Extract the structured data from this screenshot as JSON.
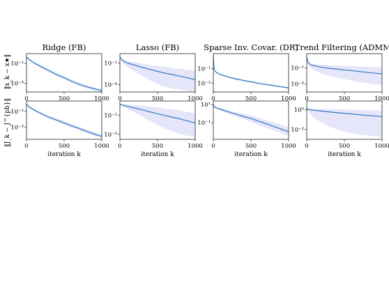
{
  "figure": {
    "row_labels": [
      "‖x_k − x★‖",
      "‖J_k − J^{pb}‖"
    ],
    "xlabel": "iteration k"
  },
  "chart_data": [
    {
      "type": "line",
      "panel": "ridge-iterate",
      "title": "Ridge (FB)",
      "xlabel": "",
      "ylabel": "‖x_k − x★‖",
      "yscale": "log",
      "xlim": [
        0,
        1000
      ],
      "ylim": [
        5e-06,
        3.0
      ],
      "xticks": [
        0,
        500,
        1000
      ],
      "yticks": [
        {
          "v": 0.1,
          "label": "10⁻¹"
        },
        {
          "v": 0.0001,
          "label": "10⁻⁴"
        }
      ],
      "x": [
        0,
        25,
        50,
        100,
        200,
        300,
        400,
        500,
        600,
        700,
        800,
        900,
        1000
      ],
      "median": [
        1.0,
        0.5,
        0.3,
        0.12,
        0.03,
        0.008,
        0.002,
        0.0007,
        0.0002,
        7e-05,
        3e-05,
        1.5e-05,
        8e-06
      ],
      "lower": [
        0.8,
        0.35,
        0.22,
        0.08,
        0.018,
        0.0045,
        0.0012,
        0.0004,
        0.00012,
        4e-05,
        1.6e-05,
        8e-06,
        5e-06
      ],
      "upper": [
        1.2,
        0.7,
        0.45,
        0.18,
        0.05,
        0.014,
        0.004,
        0.0012,
        0.0004,
        0.00013,
        5e-05,
        2.5e-05,
        1.4e-05
      ]
    },
    {
      "type": "line",
      "panel": "lasso-iterate",
      "title": "Lasso (FB)",
      "xlabel": "",
      "yscale": "log",
      "xlim": [
        0,
        1000
      ],
      "ylim": [
        1e-05,
        2.0
      ],
      "xticks": [
        0,
        500,
        1000
      ],
      "yticks": [
        {
          "v": 0.1,
          "label": "10⁻¹"
        },
        {
          "v": 0.0001,
          "label": "10⁻⁴"
        }
      ],
      "x": [
        0,
        25,
        50,
        100,
        200,
        300,
        400,
        500,
        600,
        700,
        800,
        900,
        1000
      ],
      "median": [
        0.7,
        0.3,
        0.18,
        0.1,
        0.05,
        0.025,
        0.013,
        0.007,
        0.004,
        0.0025,
        0.0015,
        0.0009,
        0.0005
      ],
      "lower": [
        0.5,
        0.18,
        0.08,
        0.03,
        0.006,
        0.0015,
        0.0004,
        0.00012,
        5e-05,
        3e-05,
        2e-05,
        1.5e-05,
        1e-05
      ],
      "upper": [
        0.9,
        0.45,
        0.3,
        0.2,
        0.12,
        0.08,
        0.055,
        0.04,
        0.03,
        0.022,
        0.016,
        0.012,
        0.009
      ]
    },
    {
      "type": "line",
      "panel": "covar-iterate",
      "title": "Sparse Inv. Covar. (DR)",
      "xlabel": "",
      "yscale": "log",
      "xlim": [
        0,
        1000
      ],
      "ylim": [
        7e-05,
        10.0
      ],
      "xticks": [
        0,
        500,
        1000
      ],
      "yticks": [
        {
          "v": 0.1,
          "label": "10⁻¹"
        },
        {
          "v": 0.001,
          "label": "10⁻³"
        }
      ],
      "x": [
        0,
        5,
        10,
        20,
        40,
        70,
        100,
        200,
        300,
        400,
        500,
        600,
        700,
        800,
        900,
        1000
      ],
      "median": [
        5.0,
        0.5,
        0.1,
        0.05,
        0.03,
        0.02,
        0.015,
        0.007,
        0.004,
        0.0025,
        0.0016,
        0.001,
        0.0007,
        0.0005,
        0.00035,
        0.00025
      ],
      "lower": [
        4.0,
        0.4,
        0.08,
        0.04,
        0.024,
        0.016,
        0.012,
        0.0055,
        0.003,
        0.0019,
        0.0012,
        0.0008,
        0.00055,
        0.00038,
        0.00027,
        0.00019
      ],
      "upper": [
        6.0,
        0.6,
        0.13,
        0.065,
        0.038,
        0.026,
        0.019,
        0.009,
        0.0052,
        0.0033,
        0.0021,
        0.0013,
        0.0009,
        0.00065,
        0.00045,
        0.00033
      ]
    },
    {
      "type": "line",
      "panel": "trend-iterate",
      "title": "Trend Filtering (ADMM)",
      "xlabel": "",
      "yscale": "log",
      "xlim": [
        0,
        1000
      ],
      "ylim": [
        0.0001,
        6.0
      ],
      "xticks": [
        0,
        500,
        1000
      ],
      "yticks": [
        {
          "v": 0.1,
          "label": "10⁻¹"
        },
        {
          "v": 0.001,
          "label": "10⁻³"
        }
      ],
      "x": [
        0,
        10,
        25,
        50,
        100,
        200,
        300,
        400,
        500,
        600,
        700,
        800,
        900,
        1000
      ],
      "median": [
        2.5,
        0.8,
        0.4,
        0.25,
        0.18,
        0.12,
        0.09,
        0.07,
        0.055,
        0.045,
        0.035,
        0.028,
        0.022,
        0.018
      ],
      "lower": [
        2.0,
        0.5,
        0.2,
        0.1,
        0.05,
        0.02,
        0.01,
        0.006,
        0.004,
        0.0025,
        0.0017,
        0.0012,
        0.0009,
        0.0007
      ],
      "upper": [
        3.0,
        1.0,
        0.6,
        0.4,
        0.3,
        0.25,
        0.22,
        0.2,
        0.18,
        0.16,
        0.15,
        0.14,
        0.13,
        0.12
      ]
    },
    {
      "type": "line",
      "panel": "ridge-jacobian",
      "title": "",
      "xlabel": "iteration k",
      "ylabel": "‖J_k − J^{pb}‖",
      "yscale": "log",
      "xlim": [
        0,
        1000
      ],
      "ylim": [
        3e-05,
        2.0
      ],
      "xticks": [
        0,
        500,
        1000
      ],
      "yticks": [
        {
          "v": 0.1,
          "label": "10⁻¹"
        },
        {
          "v": 0.001,
          "label": "10⁻³"
        }
      ],
      "x": [
        0,
        25,
        50,
        100,
        200,
        300,
        400,
        500,
        600,
        700,
        800,
        900,
        1000
      ],
      "median": [
        0.8,
        0.45,
        0.3,
        0.15,
        0.05,
        0.018,
        0.008,
        0.0035,
        0.0015,
        0.0007,
        0.0003,
        0.00014,
        7e-05
      ],
      "lower": [
        0.65,
        0.35,
        0.22,
        0.1,
        0.032,
        0.011,
        0.0048,
        0.0021,
        0.0009,
        0.0004,
        0.00018,
        8e-05,
        4e-05
      ],
      "upper": [
        0.95,
        0.58,
        0.4,
        0.21,
        0.075,
        0.028,
        0.013,
        0.0058,
        0.0026,
        0.0012,
        0.00055,
        0.00025,
        0.00012
      ]
    },
    {
      "type": "line",
      "panel": "lasso-jacobian",
      "title": "",
      "xlabel": "iteration k",
      "yscale": "log",
      "xlim": [
        0,
        1000
      ],
      "ylim": [
        0.0003,
        3.0
      ],
      "xticks": [
        0,
        500,
        1000
      ],
      "yticks": [
        {
          "v": 0.1,
          "label": "10⁻¹"
        },
        {
          "v": 0.001,
          "label": "10⁻³"
        }
      ],
      "x": [
        0,
        25,
        50,
        100,
        200,
        300,
        400,
        500,
        600,
        700,
        800,
        900,
        1000
      ],
      "median": [
        1.3,
        1.2,
        1.05,
        0.85,
        0.55,
        0.35,
        0.22,
        0.14,
        0.09,
        0.06,
        0.04,
        0.025,
        0.015
      ],
      "lower": [
        1.1,
        0.9,
        0.7,
        0.45,
        0.18,
        0.07,
        0.025,
        0.01,
        0.004,
        0.002,
        0.001,
        0.0007,
        0.0005
      ],
      "upper": [
        1.5,
        1.45,
        1.4,
        1.3,
        1.1,
        0.95,
        0.8,
        0.65,
        0.5,
        0.4,
        0.3,
        0.22,
        0.15
      ]
    },
    {
      "type": "line",
      "panel": "covar-jacobian",
      "title": "",
      "xlabel": "iteration k",
      "yscale": "log",
      "xlim": [
        0,
        1000
      ],
      "ylim": [
        0.0015,
        25.0
      ],
      "xticks": [
        0,
        500,
        1000
      ],
      "yticks": [
        {
          "v": 10,
          "label": "10¹"
        },
        {
          "v": 0.1,
          "label": "10⁻¹"
        }
      ],
      "x": [
        0,
        10,
        50,
        100,
        200,
        300,
        400,
        500,
        600,
        700,
        800,
        900,
        1000
      ],
      "median": [
        10.0,
        6.0,
        4.0,
        3.0,
        1.6,
        0.9,
        0.5,
        0.3,
        0.15,
        0.08,
        0.04,
        0.02,
        0.01
      ],
      "lower": [
        8.5,
        4.8,
        3.0,
        2.1,
        1.0,
        0.5,
        0.25,
        0.12,
        0.06,
        0.03,
        0.014,
        0.007,
        0.0035
      ],
      "upper": [
        12.0,
        7.5,
        5.2,
        4.0,
        2.4,
        1.5,
        0.95,
        0.6,
        0.35,
        0.2,
        0.11,
        0.06,
        0.03
      ]
    },
    {
      "type": "line",
      "panel": "trend-jacobian",
      "title": "",
      "xlabel": "iteration k",
      "yscale": "log",
      "xlim": [
        0,
        1000
      ],
      "ylim": [
        0.001,
        8.0
      ],
      "xticks": [
        0,
        500,
        1000
      ],
      "yticks": [
        {
          "v": 1,
          "label": "10⁰"
        },
        {
          "v": 0.01,
          "label": "10⁻²"
        }
      ],
      "x": [
        0,
        10,
        25,
        50,
        100,
        200,
        300,
        400,
        500,
        600,
        700,
        800,
        900,
        1000
      ],
      "median": [
        1.5,
        1.2,
        1.1,
        1.0,
        0.9,
        0.75,
        0.62,
        0.52,
        0.45,
        0.38,
        0.32,
        0.27,
        0.24,
        0.2
      ],
      "lower": [
        1.3,
        0.9,
        0.6,
        0.35,
        0.15,
        0.05,
        0.02,
        0.01,
        0.006,
        0.004,
        0.003,
        0.0025,
        0.002,
        0.0016
      ],
      "upper": [
        1.7,
        1.5,
        1.4,
        1.35,
        1.3,
        1.25,
        1.2,
        1.15,
        1.1,
        1.05,
        1.0,
        0.95,
        0.9,
        0.85
      ]
    }
  ]
}
